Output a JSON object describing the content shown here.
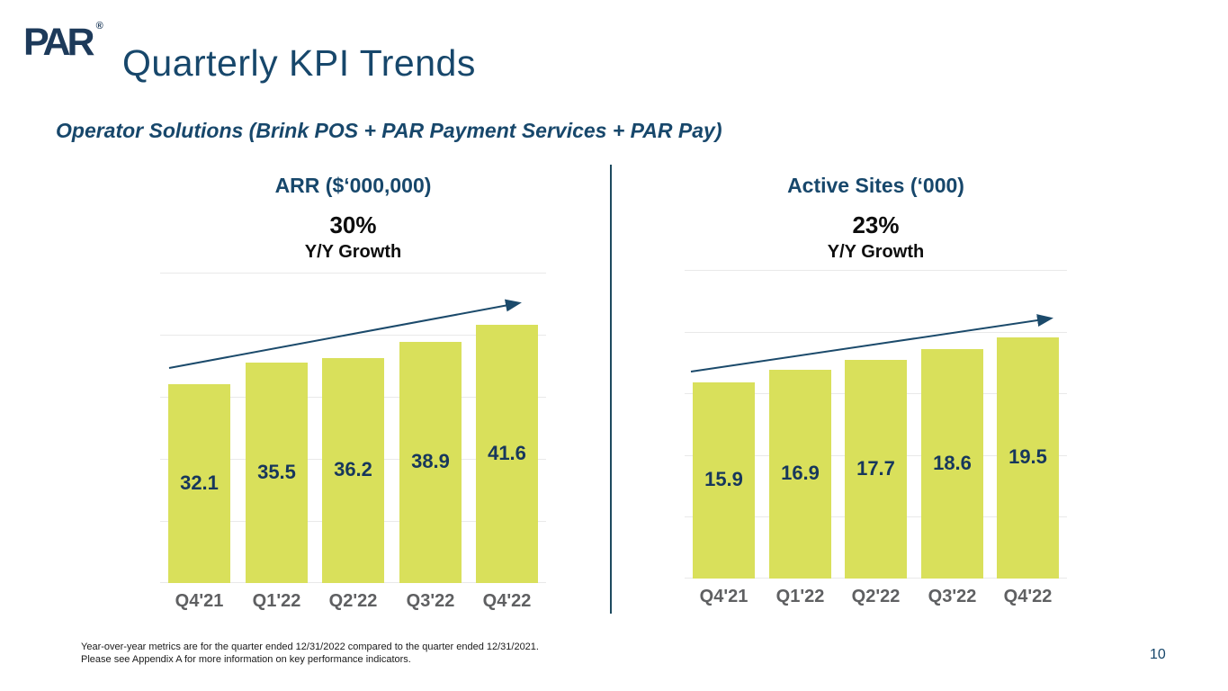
{
  "page": {
    "logo": {
      "text": "PAR",
      "registered_mark": "®"
    },
    "title": "Quarterly KPI Trends",
    "subtitle": "Operator Solutions (Brink POS + PAR Payment Services + PAR Pay)",
    "footnote_line1": "Year-over-year metrics are for the quarter ended 12/31/2022 compared to the quarter ended 12/31/2021.",
    "footnote_line2": "Please see Appendix A for more information on key performance indicators.",
    "page_number": "10"
  },
  "colors": {
    "brand_navy": "#17476b",
    "bar_fill": "#d9e05b",
    "value_label": "#17375c",
    "axis_label": "#5f6062",
    "trend_arrow": "#1b4a6b",
    "gridline": "#e9e9e9",
    "divider": "#1d4a5f"
  },
  "chart_data": [
    {
      "type": "bar",
      "title": "ARR ($‘000,000)",
      "growth_value": "30%",
      "growth_label": "Y/Y Growth",
      "categories": [
        "Q4'21",
        "Q1'22",
        "Q2'22",
        "Q3'22",
        "Q4'22"
      ],
      "values": [
        32.1,
        35.5,
        36.2,
        38.9,
        41.6
      ],
      "ylim": [
        0,
        50
      ],
      "gridline_step": 10,
      "grid": "horizontal",
      "legend": "none",
      "annotation": "upward trend arrow"
    },
    {
      "type": "bar",
      "title": "Active Sites (‘000)",
      "growth_value": "23%",
      "growth_label": "Y/Y Growth",
      "categories": [
        "Q4'21",
        "Q1'22",
        "Q2'22",
        "Q3'22",
        "Q4'22"
      ],
      "values": [
        15.9,
        16.9,
        17.7,
        18.6,
        19.5
      ],
      "ylim": [
        0,
        25
      ],
      "gridline_step": 5,
      "grid": "horizontal",
      "legend": "none",
      "annotation": "upward trend arrow"
    }
  ]
}
